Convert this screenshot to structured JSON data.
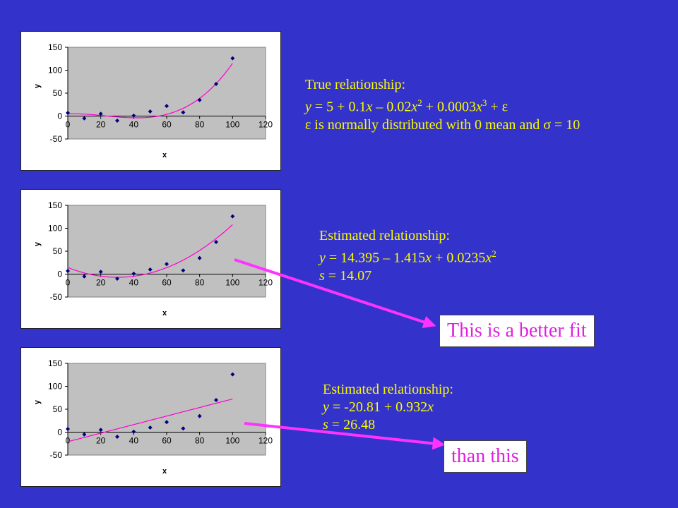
{
  "chart_data": [
    {
      "type": "scatter",
      "xlabel": "x",
      "ylabel": "y",
      "xlim": [
        0,
        120
      ],
      "ylim": [
        -50,
        150
      ],
      "x_ticks": [
        0,
        20,
        40,
        60,
        80,
        100,
        120
      ],
      "y_ticks": [
        -50,
        0,
        50,
        100,
        150
      ],
      "points": {
        "x": [
          0,
          10,
          20,
          30,
          40,
          50,
          60,
          70,
          80,
          90,
          100
        ],
        "y": [
          7,
          -5,
          5,
          -10,
          1,
          10,
          22,
          8,
          35,
          70,
          126
        ]
      },
      "fit": {
        "kind": "cubic",
        "coefficients": [
          5,
          0.1,
          -0.02,
          0.0003
        ]
      },
      "grid": false
    },
    {
      "type": "scatter",
      "xlabel": "x",
      "ylabel": "y",
      "xlim": [
        0,
        120
      ],
      "ylim": [
        -50,
        150
      ],
      "x_ticks": [
        0,
        20,
        40,
        60,
        80,
        100,
        120
      ],
      "y_ticks": [
        -50,
        0,
        50,
        100,
        150
      ],
      "points": {
        "x": [
          0,
          10,
          20,
          30,
          40,
          50,
          60,
          70,
          80,
          90,
          100
        ],
        "y": [
          7,
          -5,
          5,
          -10,
          1,
          10,
          22,
          8,
          35,
          70,
          126
        ]
      },
      "fit": {
        "kind": "quadratic",
        "coefficients": [
          14.395,
          -1.415,
          0.0235
        ]
      },
      "grid": false
    },
    {
      "type": "scatter",
      "xlabel": "x",
      "ylabel": "y",
      "xlim": [
        0,
        120
      ],
      "ylim": [
        -50,
        150
      ],
      "x_ticks": [
        0,
        20,
        40,
        60,
        80,
        100,
        120
      ],
      "y_ticks": [
        -50,
        0,
        50,
        100,
        150
      ],
      "points": {
        "x": [
          0,
          10,
          20,
          30,
          40,
          50,
          60,
          70,
          80,
          90,
          100
        ],
        "y": [
          7,
          -5,
          5,
          -10,
          1,
          10,
          22,
          8,
          35,
          70,
          126
        ]
      },
      "fit": {
        "kind": "linear",
        "coefficients": [
          -20.81,
          0.932
        ]
      },
      "grid": false
    }
  ],
  "colors": {
    "background": "#3333cc",
    "plot_area": "#c0c0c0",
    "points": "#000080",
    "fit_line": "#ff00cc",
    "text": "#fafa00",
    "callout_text": "#e020e0",
    "arrow": "#ff33ff"
  },
  "annotations": {
    "true_rel": {
      "heading": "True relationship:",
      "eq_y": "y",
      "eq_a": " = 5 + 0.1",
      "eq_x1": "x",
      "eq_b": " – 0.02",
      "eq_x2": "x",
      "eq_exp2": "2",
      "eq_c": " + 0.0003",
      "eq_x3": "x",
      "eq_exp3": "3",
      "eq_d": " + ε",
      "note": "ε is normally distributed with 0 mean and σ = 10"
    },
    "quad_est": {
      "heading": "Estimated relationship:",
      "eq_y": "y",
      "eq_a": " = 14.395 – 1.415",
      "eq_x1": "x",
      "eq_b": " + 0.0235",
      "eq_x2": "x",
      "eq_exp2": "2",
      "s_sym": "s",
      "s_val": " = 14.07"
    },
    "lin_est": {
      "heading": "Estimated relationship:",
      "eq_y": "y",
      "eq_a": " = -20.81 + 0.932",
      "eq_x1": "x",
      "s_sym": "s",
      "s_val": " = 26.48"
    },
    "callout_better": "This is a better fit",
    "callout_than": "than this"
  }
}
